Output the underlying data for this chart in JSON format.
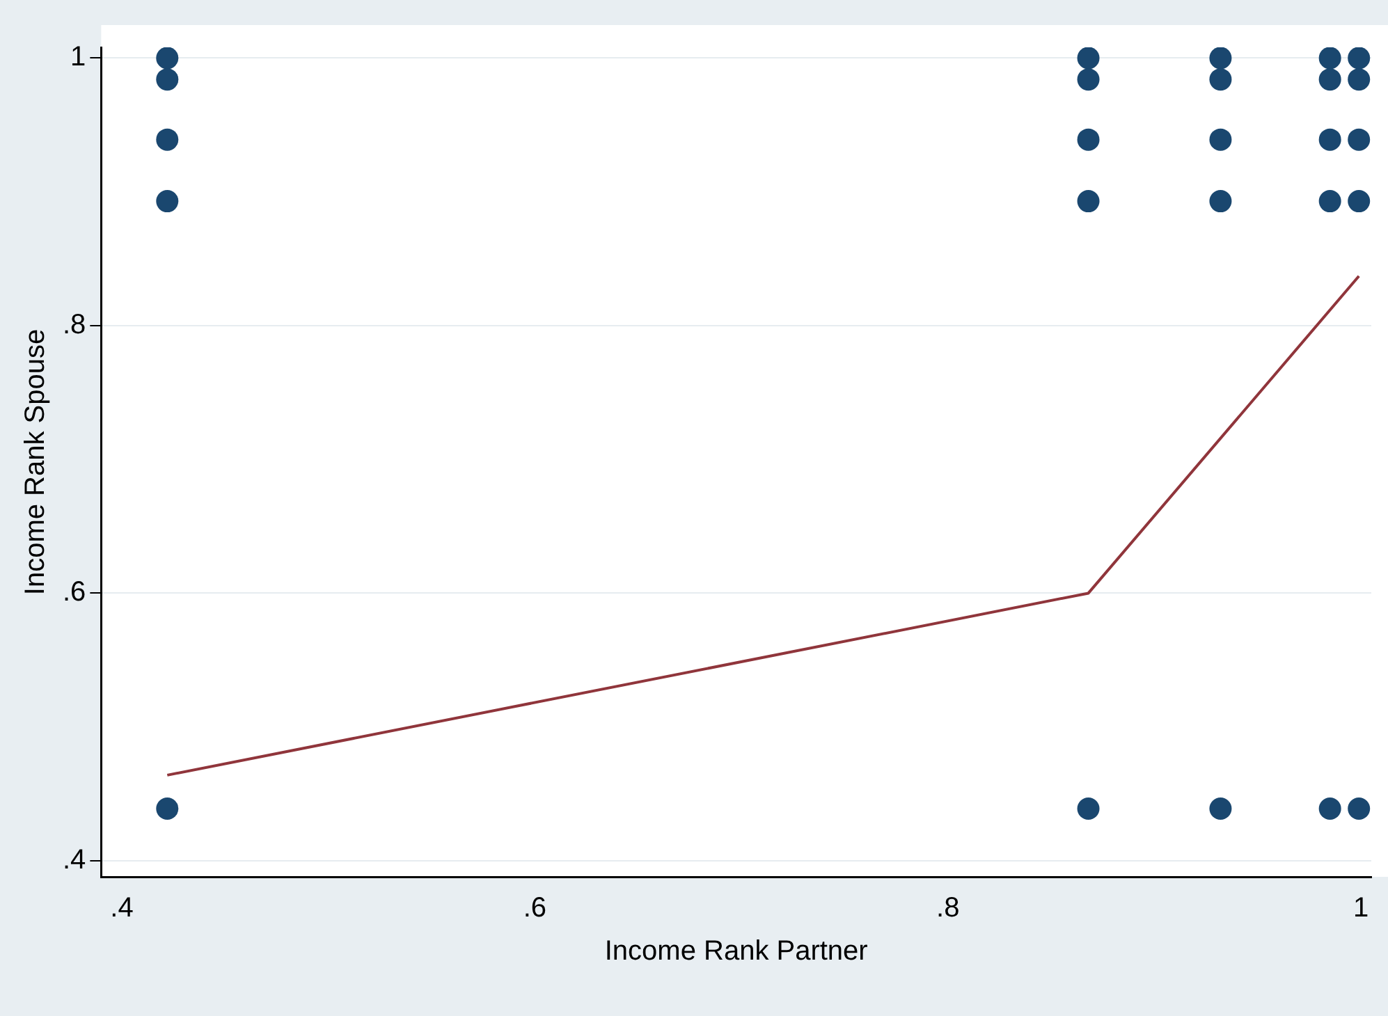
{
  "chart_data": {
    "type": "scatter",
    "xlabel": "Income Rank Partner",
    "ylabel": "Income Rank Spouse",
    "xlim": [
      0.39,
      1.005
    ],
    "ylim": [
      0.388,
      1.008
    ],
    "xticks": [
      {
        "value": 0.4,
        "label": ".4"
      },
      {
        "value": 0.6,
        "label": ".6"
      },
      {
        "value": 0.8,
        "label": ".8"
      },
      1
    ],
    "yticks": [
      {
        "value": 0.4,
        "label": ".4"
      },
      {
        "value": 0.6,
        "label": ".6"
      },
      {
        "value": 0.8,
        "label": ".8"
      },
      1
    ],
    "grid": "y",
    "legend": false,
    "marker": "circle",
    "series": [
      {
        "color": "#1a476f",
        "x": [
          0.422,
          0.422,
          0.422,
          0.422,
          0.422,
          0.868,
          0.868,
          0.868,
          0.868,
          0.868,
          0.932,
          0.932,
          0.932,
          0.932,
          0.932,
          0.985,
          0.985,
          0.985,
          0.985,
          0.985,
          0.999,
          0.999,
          0.999,
          0.999,
          0.999
        ],
        "values": [
          1.0,
          0.984,
          0.939,
          0.893,
          0.439,
          1.0,
          0.984,
          0.939,
          0.893,
          0.439,
          1.0,
          0.984,
          0.939,
          0.893,
          0.439,
          1.0,
          0.984,
          0.939,
          0.893,
          0.439,
          1.0,
          0.984,
          0.939,
          0.893,
          0.439
        ]
      },
      {
        "type": "line",
        "color": "#90353b",
        "marker": "none",
        "x": [
          0.422,
          0.868,
          0.999
        ],
        "values": [
          0.464,
          0.6,
          0.837
        ]
      }
    ]
  }
}
